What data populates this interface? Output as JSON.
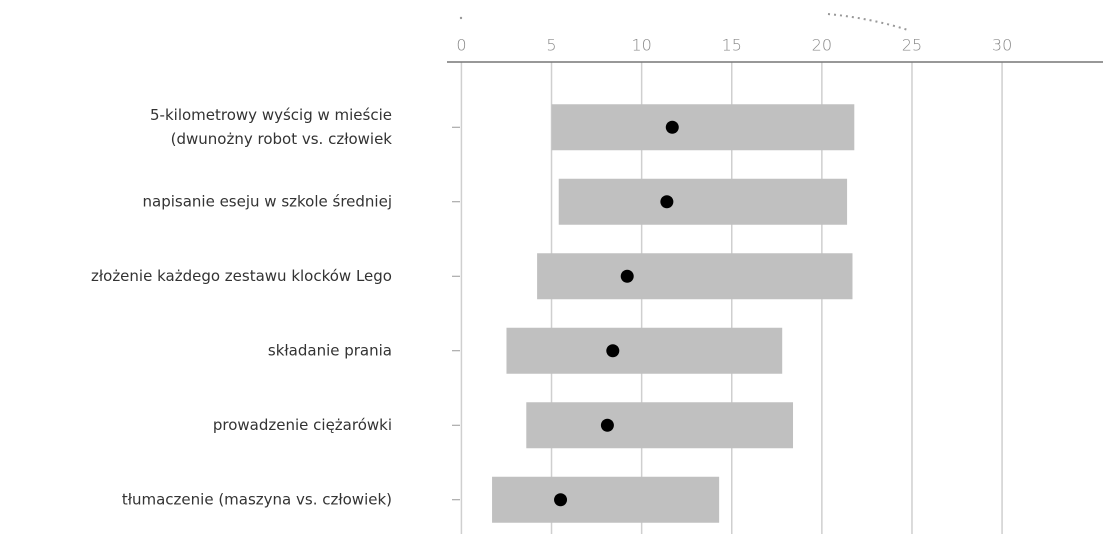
{
  "chart_data": {
    "type": "range-dot",
    "categories": [
      [
        "5-kilometrowy wyścig w mieście",
        "(dwunożny robot vs. człowiek"
      ],
      "napisanie eseju w szkole średniej",
      "złożenie każdego zestawu klocków Lego",
      "składanie prania",
      "prowadzenie ciężarówki",
      "tłumaczenie (maszyna vs. człowiek)"
    ],
    "low": [
      5.0,
      5.4,
      4.2,
      2.5,
      3.6,
      1.7
    ],
    "high": [
      21.8,
      21.4,
      21.7,
      17.8,
      18.4,
      14.3
    ],
    "values": [
      11.7,
      11.4,
      9.2,
      8.4,
      8.1,
      5.5
    ],
    "bar_color": "#c0c0c0",
    "dot_color": "#000000",
    "xlim": [
      -0.8,
      35.6
    ],
    "xticks": [
      0,
      5,
      10,
      15,
      20,
      25,
      30
    ],
    "grid": true
  }
}
